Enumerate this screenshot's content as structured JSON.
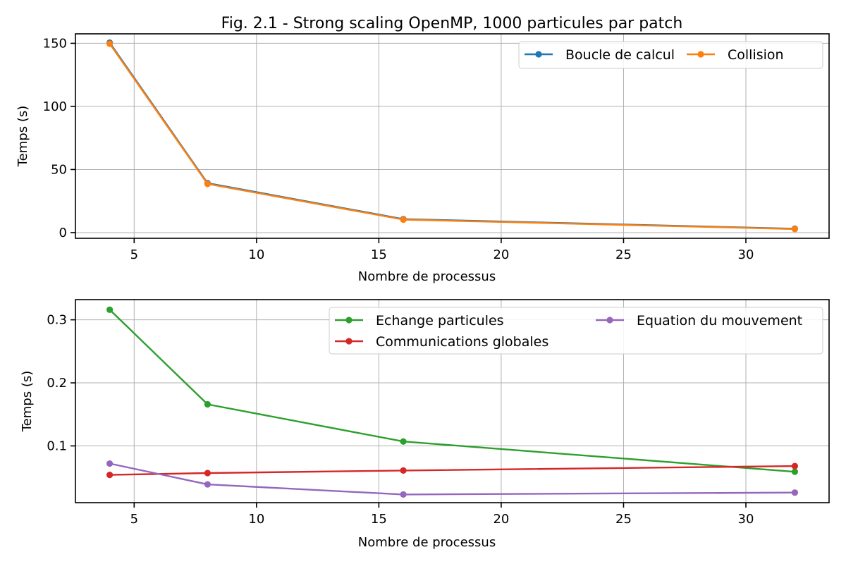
{
  "chart_data": [
    {
      "type": "line",
      "title": "Fig. 2.1 - Strong scaling OpenMP, 1000 particules par patch",
      "xlabel": "Nombre de processus",
      "ylabel": "Temps (s)",
      "xlim": [
        2.6,
        33.4
      ],
      "ylim": [
        -4.5,
        157.5
      ],
      "xticks": [
        5,
        10,
        15,
        20,
        25,
        30
      ],
      "yticks": [
        0,
        50,
        100,
        150
      ],
      "ytick_labels": [
        "0",
        "50",
        "100",
        "150"
      ],
      "grid": true,
      "legend_position": "top-right",
      "legend_columns": 2,
      "x": [
        4,
        8,
        16,
        32
      ],
      "series": [
        {
          "name": "Boucle de calcul",
          "color": "#1f77b4",
          "values": [
            150.5,
            39.2,
            10.7,
            3.1
          ]
        },
        {
          "name": "Collision",
          "color": "#ff7f0e",
          "values": [
            149.7,
            38.6,
            10.3,
            2.8
          ]
        }
      ]
    },
    {
      "type": "line",
      "title": "",
      "xlabel": "Nombre de processus",
      "ylabel": "Temps (s)",
      "xlim": [
        2.6,
        33.4
      ],
      "ylim": [
        0.01,
        0.332
      ],
      "xticks": [
        5,
        10,
        15,
        20,
        25,
        30
      ],
      "yticks": [
        0.1,
        0.2,
        0.3
      ],
      "ytick_labels": [
        "0.1",
        "0.2",
        "0.3"
      ],
      "grid": true,
      "legend_position": "top-right",
      "legend_columns": 2,
      "x": [
        4,
        8,
        16,
        32
      ],
      "series": [
        {
          "name": "Echange particules",
          "color": "#2ca02c",
          "values": [
            0.316,
            0.166,
            0.107,
            0.059
          ]
        },
        {
          "name": "Communications globales",
          "color": "#d62728",
          "values": [
            0.054,
            0.057,
            0.061,
            0.068
          ]
        },
        {
          "name": "Equation du mouvement",
          "color": "#9467bd",
          "values": [
            0.072,
            0.039,
            0.023,
            0.026
          ]
        }
      ]
    }
  ]
}
